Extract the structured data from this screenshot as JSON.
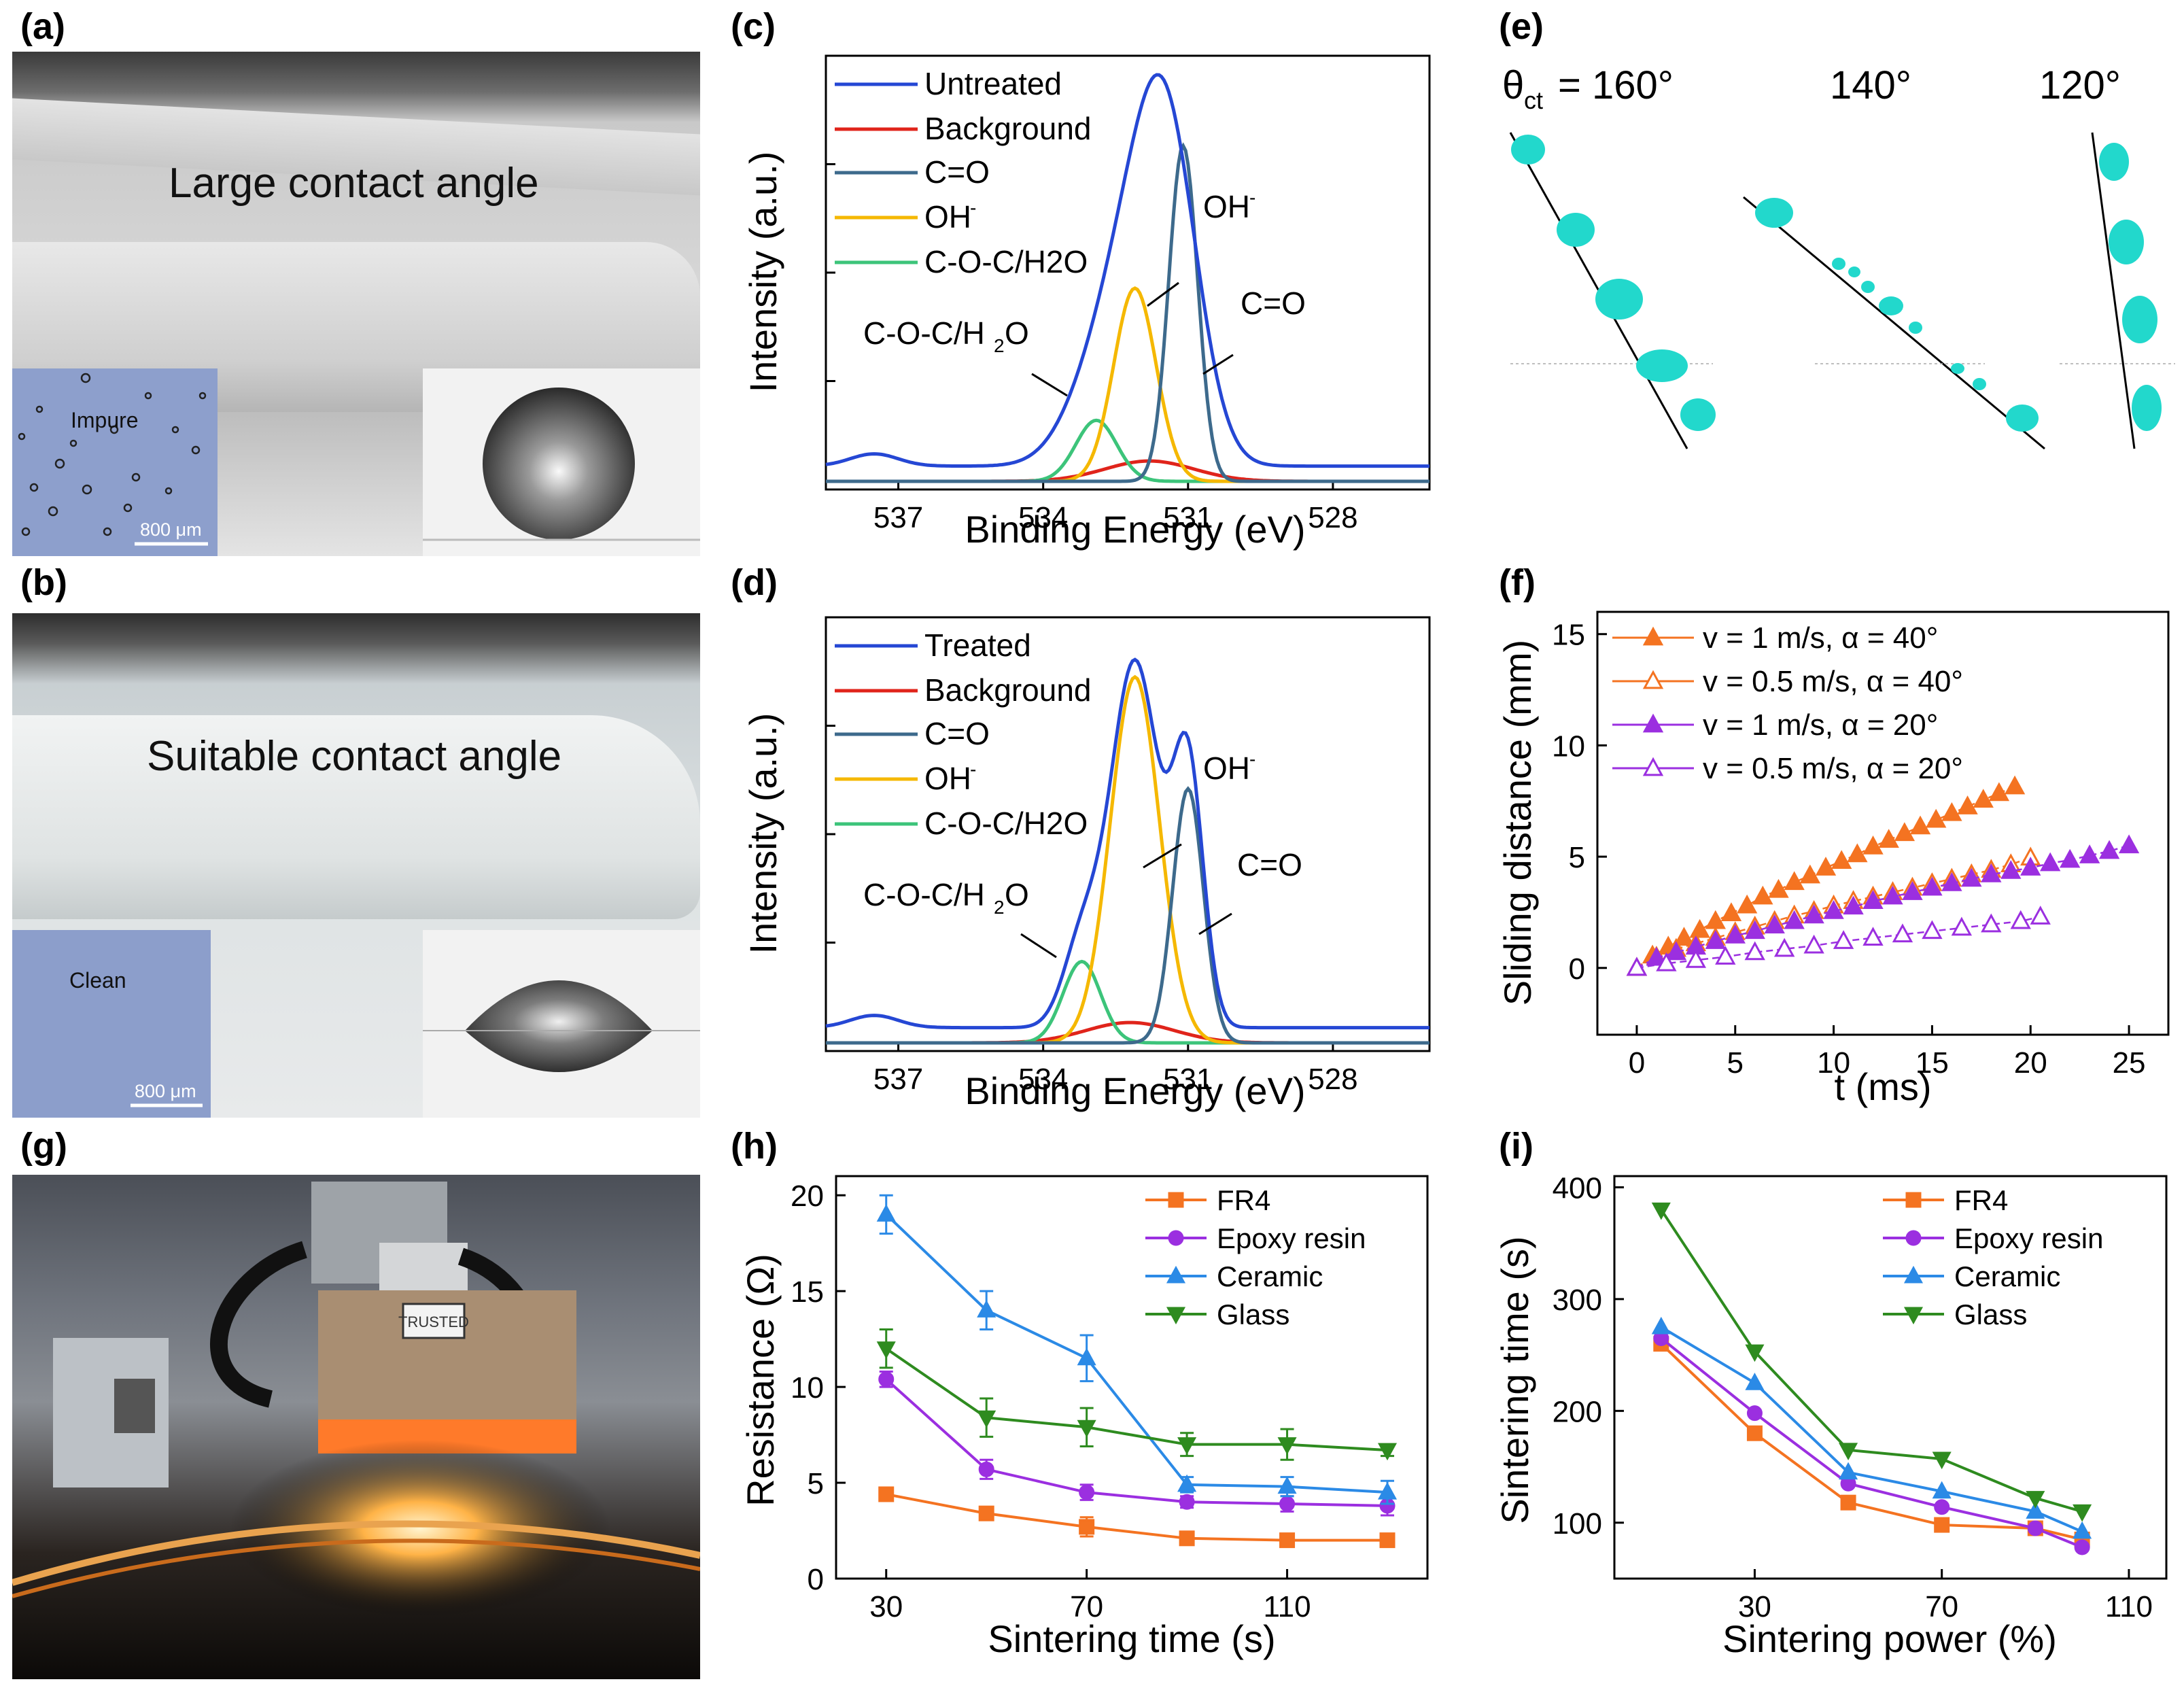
{
  "panels": {
    "a": "(a)",
    "b": "(b)",
    "c": "(c)",
    "d": "(d)",
    "e": "(e)",
    "f": "(f)",
    "g": "(g)",
    "h": "(h)",
    "i": "(i)"
  },
  "photo_a": {
    "label": "Large contact angle",
    "inset_text": "Impure",
    "scale": "800 μm"
  },
  "photo_b": {
    "label": "Suitable contact angle",
    "inset_text": "Clean",
    "scale": "800 μm"
  },
  "photo_g": {
    "device_label": "TRUSTED"
  },
  "panel_e": {
    "theta_symbol": "θ",
    "theta_sub": "ct",
    "angles": [
      "= 160°",
      "140°",
      "120°"
    ]
  },
  "colors": {
    "blue": "#2547d4",
    "red": "#e0241b",
    "darkblue": "#3d6a8c",
    "yellow": "#f5b800",
    "green": "#3cc47a",
    "orange": "#f47321",
    "purple": "#9b2fe0",
    "lightblue": "#2b8ae6",
    "darkgreen": "#2e8b1f",
    "cyan": "#1fd3c8"
  },
  "chart_data": [
    {
      "id": "c",
      "type": "line",
      "xlabel": "Binding Energy (eV)",
      "ylabel": "Intensity (a.u.)",
      "xlim": [
        538.5,
        526
      ],
      "ylim": [
        0,
        1
      ],
      "xticks": [
        537,
        534,
        531,
        528
      ],
      "x_tick_labels": [
        "537",
        "534",
        "531",
        "528"
      ],
      "legend": [
        "Untreated",
        "Background",
        "C=O",
        "OH",
        "C-O-C/H2O"
      ],
      "legend_sup": {
        "OH": "-"
      },
      "annotations": {
        "oh": "OH",
        "oh_sup": "-",
        "co": "C=O",
        "coc": "C-O-C/H",
        "coc_sub": "2",
        "coc_tail": "O"
      },
      "series": [
        {
          "name": "Untreated",
          "peaks": [
            [
              531.4,
              0.27,
              0.9
            ],
            [
              532.1,
              0.15,
              1.0
            ],
            [
              532.9,
              0.06,
              1.0
            ]
          ],
          "base": 0.015
        },
        {
          "name": "Background",
          "peaks": [
            [
              531.8,
              0.02,
              1.3
            ]
          ],
          "base": 0.0
        },
        {
          "name": "C=O",
          "peaks": [
            [
              531.1,
              0.33,
              0.42
            ]
          ],
          "base": 0.0
        },
        {
          "name": "OH",
          "peaks": [
            [
              532.1,
              0.19,
              0.62
            ]
          ],
          "base": 0.0
        },
        {
          "name": "C-O-C/H2O",
          "peaks": [
            [
              532.9,
              0.06,
              0.6
            ]
          ],
          "base": 0.0
        }
      ]
    },
    {
      "id": "d",
      "type": "line",
      "xlabel": "Binding Energy (eV)",
      "ylabel": "Intensity (a.u.)",
      "xlim": [
        538.5,
        526
      ],
      "ylim": [
        0,
        1
      ],
      "xticks": [
        537,
        534,
        531,
        528
      ],
      "x_tick_labels": [
        "537",
        "534",
        "531",
        "528"
      ],
      "legend": [
        "Treated",
        "Background",
        "C=O",
        "OH",
        "C-O-C/H2O"
      ],
      "legend_sup": {
        "OH": "-"
      },
      "annotations": {
        "oh": "OH",
        "oh_sup": "-",
        "co": "C=O",
        "coc": "C-O-C/H",
        "coc_sub": "2",
        "coc_tail": "O"
      },
      "series": [
        {
          "name": "Treated",
          "peaks": [
            [
              531.0,
              0.25,
              0.45
            ],
            [
              532.1,
              0.36,
              0.72
            ],
            [
              533.2,
              0.08,
              0.55
            ]
          ],
          "base": 0.015
        },
        {
          "name": "Background",
          "peaks": [
            [
              532.2,
              0.02,
              1.3
            ]
          ],
          "base": 0.0
        },
        {
          "name": "C=O",
          "peaks": [
            [
              531.0,
              0.25,
              0.45
            ]
          ],
          "base": 0.0
        },
        {
          "name": "OH",
          "peaks": [
            [
              532.1,
              0.36,
              0.72
            ]
          ],
          "base": 0.0
        },
        {
          "name": "C-O-C/H2O",
          "peaks": [
            [
              533.2,
              0.08,
              0.55
            ]
          ],
          "base": 0.0
        }
      ]
    },
    {
      "id": "f",
      "type": "scatter",
      "xlabel": "t (ms)",
      "ylabel": "Sliding distance (mm)",
      "xlim": [
        -2,
        27
      ],
      "ylim": [
        -3,
        16
      ],
      "xticks": [
        0,
        5,
        10,
        15,
        20,
        25
      ],
      "yticks": [
        0,
        5,
        10,
        15
      ],
      "legend": [
        "v = 1 m/s, α = 40°",
        "v = 0.5 m/s, α = 40°",
        "v = 1 m/s, α = 20°",
        "v = 0.5 m/s, α = 20°"
      ],
      "series": [
        {
          "name": "v = 1 m/s, α = 40°",
          "filled": true,
          "color": "orange",
          "x": [
            0,
            0.8,
            1.6,
            2.4,
            3.2,
            4,
            4.8,
            5.6,
            6.4,
            7.2,
            8,
            8.8,
            9.6,
            10.4,
            11.2,
            12,
            12.8,
            13.6,
            14.4,
            15.2,
            16,
            16.8,
            17.6,
            18.4,
            19.2
          ],
          "y": [
            0,
            0.55,
            0.95,
            1.35,
            1.7,
            2.1,
            2.45,
            2.8,
            3.2,
            3.5,
            3.85,
            4.15,
            4.5,
            4.8,
            5.1,
            5.45,
            5.75,
            6.05,
            6.35,
            6.65,
            6.95,
            7.25,
            7.55,
            7.85,
            8.15
          ]
        },
        {
          "name": "v = 0.5 m/s, α = 40°",
          "filled": false,
          "color": "orange",
          "x": [
            0,
            1,
            2,
            3,
            4,
            5,
            6,
            7,
            8,
            9,
            10,
            11,
            12,
            13,
            14,
            15,
            16,
            17,
            18,
            19,
            20
          ],
          "y": [
            0,
            0.5,
            0.85,
            1.1,
            1.35,
            1.6,
            1.85,
            2.1,
            2.35,
            2.55,
            2.8,
            3.0,
            3.2,
            3.4,
            3.6,
            3.8,
            4.0,
            4.2,
            4.4,
            4.65,
            4.95
          ]
        },
        {
          "name": "v = 1 m/s, α = 20°",
          "filled": true,
          "color": "purple",
          "x": [
            0,
            1,
            2,
            3,
            4,
            5,
            6,
            7,
            8,
            9,
            10,
            11,
            12,
            13,
            14,
            15,
            16,
            17,
            18,
            19,
            20,
            21,
            22,
            23,
            24,
            25
          ],
          "y": [
            0,
            0.45,
            0.7,
            0.95,
            1.2,
            1.45,
            1.65,
            1.9,
            2.1,
            2.35,
            2.55,
            2.75,
            3.0,
            3.2,
            3.4,
            3.6,
            3.8,
            4.0,
            4.2,
            4.35,
            4.5,
            4.7,
            4.85,
            5.05,
            5.25,
            5.5
          ]
        },
        {
          "name": "v = 0.5 m/s, α = 20°",
          "filled": false,
          "color": "purple",
          "x": [
            0,
            1.5,
            3,
            4.5,
            6,
            7.5,
            9,
            10.5,
            12,
            13.5,
            15,
            16.5,
            18,
            19.5,
            20.5
          ],
          "y": [
            0,
            0.2,
            0.35,
            0.5,
            0.7,
            0.85,
            1.0,
            1.2,
            1.35,
            1.5,
            1.65,
            1.8,
            1.95,
            2.1,
            2.3
          ]
        }
      ]
    },
    {
      "id": "h",
      "type": "line",
      "xlabel": "Sintering time (s)",
      "ylabel": "Resistance (Ω)",
      "xlim": [
        20,
        138
      ],
      "ylim": [
        0,
        21
      ],
      "xticks": [
        30,
        70,
        110
      ],
      "yticks": [
        0,
        5,
        10,
        15,
        20
      ],
      "legend": [
        "FR4",
        "Epoxy resin",
        "Ceramic",
        "Glass"
      ],
      "x": [
        30,
        50,
        70,
        90,
        110,
        130
      ],
      "series": [
        {
          "name": "FR4",
          "marker": "square",
          "color": "orange",
          "values": [
            4.4,
            3.4,
            2.7,
            2.1,
            2.0,
            2.0
          ],
          "err": [
            0.25,
            0.2,
            0.5,
            0.15,
            0.15,
            0.15
          ]
        },
        {
          "name": "Epoxy resin",
          "marker": "circle",
          "color": "purple",
          "values": [
            10.4,
            5.7,
            4.5,
            4.0,
            3.9,
            3.8
          ],
          "err": [
            0.4,
            0.5,
            0.4,
            0.3,
            0.4,
            0.5
          ]
        },
        {
          "name": "Ceramic",
          "marker": "triangle-up",
          "color": "lightblue",
          "values": [
            19.0,
            14.0,
            11.5,
            4.9,
            4.8,
            4.5
          ],
          "err": [
            1.0,
            1.0,
            1.2,
            0.4,
            0.5,
            0.6
          ]
        },
        {
          "name": "Glass",
          "marker": "triangle-down",
          "color": "darkgreen",
          "values": [
            12.0,
            8.4,
            7.9,
            7.0,
            7.0,
            6.7
          ],
          "err": [
            1.0,
            1.0,
            1.0,
            0.6,
            0.8,
            0.3
          ]
        }
      ]
    },
    {
      "id": "i",
      "type": "line",
      "xlabel": "Sintering power (%)",
      "ylabel": "Sintering time (s)",
      "xlim": [
        0,
        118
      ],
      "ylim": [
        50,
        410
      ],
      "xticks": [
        30,
        70,
        110
      ],
      "yticks": [
        100,
        200,
        300,
        400
      ],
      "legend": [
        "FR4",
        "Epoxy resin",
        "Ceramic",
        "Glass"
      ],
      "x": [
        10,
        30,
        50,
        70,
        90,
        100
      ],
      "series": [
        {
          "name": "FR4",
          "marker": "square",
          "color": "orange",
          "values": [
            260,
            180,
            118,
            98,
            95,
            85
          ]
        },
        {
          "name": "Epoxy resin",
          "marker": "circle",
          "color": "purple",
          "values": [
            265,
            198,
            135,
            114,
            95,
            78
          ]
        },
        {
          "name": "Ceramic",
          "marker": "triangle-up",
          "color": "lightblue",
          "values": [
            275,
            225,
            145,
            128,
            110,
            92
          ]
        },
        {
          "name": "Glass",
          "marker": "triangle-down",
          "color": "darkgreen",
          "values": [
            380,
            253,
            165,
            157,
            122,
            110
          ]
        }
      ]
    }
  ]
}
